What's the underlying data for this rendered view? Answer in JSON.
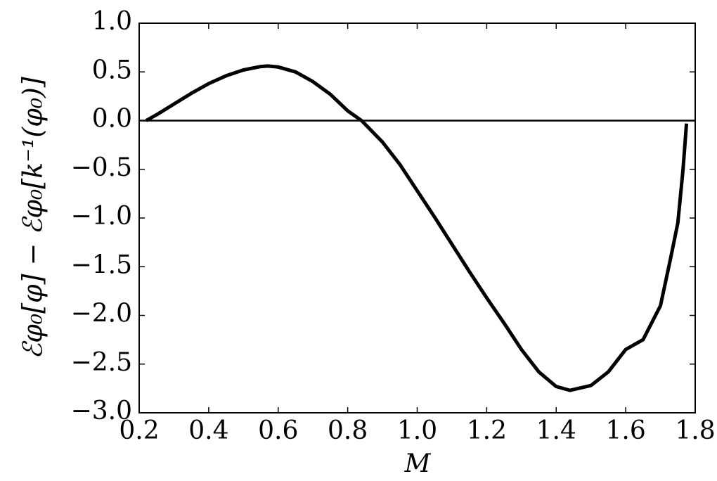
{
  "chart_data": {
    "type": "line",
    "xlabel": "M",
    "ylabel": "ℰφ₀[φ] − ℰφ₀[k⁻¹(φ₀)]",
    "x": [
      0.22,
      0.25,
      0.3,
      0.35,
      0.4,
      0.45,
      0.5,
      0.55,
      0.57,
      0.6,
      0.65,
      0.7,
      0.75,
      0.8,
      0.84,
      0.9,
      0.95,
      1.0,
      1.05,
      1.1,
      1.15,
      1.2,
      1.25,
      1.3,
      1.35,
      1.4,
      1.44,
      1.5,
      1.55,
      1.6,
      1.65,
      1.7,
      1.73,
      1.75,
      1.765,
      1.775
    ],
    "series": [
      {
        "name": "curve",
        "color": "#000000",
        "values": [
          0,
          0.06,
          0.17,
          0.28,
          0.38,
          0.46,
          0.52,
          0.555,
          0.56,
          0.55,
          0.5,
          0.4,
          0.27,
          0.1,
          0,
          -0.22,
          -0.45,
          -0.72,
          -0.99,
          -1.27,
          -1.55,
          -1.82,
          -2.08,
          -2.35,
          -2.58,
          -2.73,
          -2.77,
          -2.72,
          -2.58,
          -2.35,
          -2.25,
          -1.9,
          -1.4,
          -1.05,
          -0.5,
          -0.03
        ]
      }
    ],
    "hline": 0,
    "xlim": [
      0.2,
      1.8
    ],
    "ylim": [
      -3.0,
      1.0
    ],
    "xticks": [
      {
        "value": 0.2,
        "label": "0.2"
      },
      {
        "value": 0.4,
        "label": "0.4"
      },
      {
        "value": 0.6,
        "label": "0.6"
      },
      {
        "value": 0.8,
        "label": "0.8"
      },
      {
        "value": 1.0,
        "label": "1.0"
      },
      {
        "value": 1.2,
        "label": "1.2"
      },
      {
        "value": 1.4,
        "label": "1.4"
      },
      {
        "value": 1.6,
        "label": "1.6"
      },
      {
        "value": 1.8,
        "label": "1.8"
      }
    ],
    "yticks": [
      {
        "value": 1.0,
        "label": "1.0"
      },
      {
        "value": 0.5,
        "label": "0.5"
      },
      {
        "value": 0.0,
        "label": "0.0"
      },
      {
        "value": -0.5,
        "label": "−0.5"
      },
      {
        "value": -1.0,
        "label": "−1.0"
      },
      {
        "value": -1.5,
        "label": "−1.5"
      },
      {
        "value": -2.0,
        "label": "−2.0"
      },
      {
        "value": -2.5,
        "label": "−2.5"
      },
      {
        "value": -3.0,
        "label": "−3.0"
      }
    ],
    "grid": false
  }
}
